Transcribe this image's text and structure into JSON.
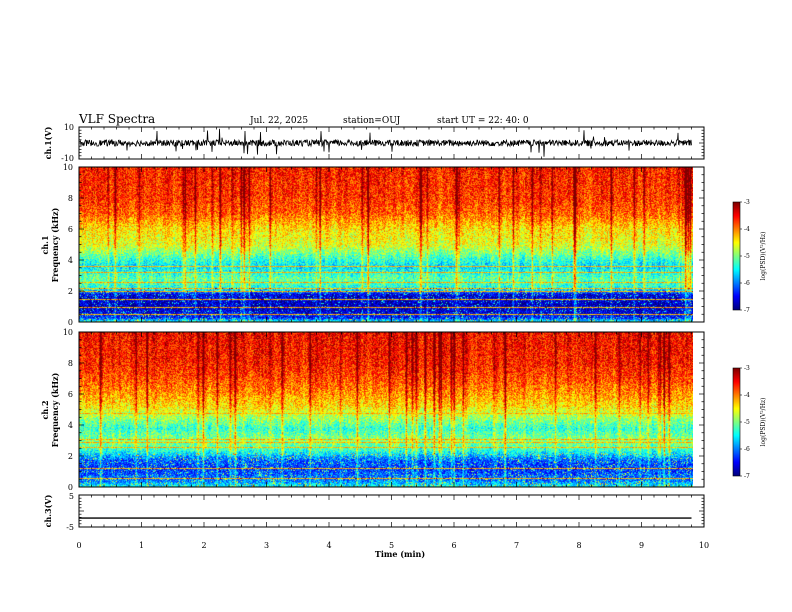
{
  "header": {
    "title": "VLF Spectra",
    "date": "Jul. 22, 2025",
    "station": "station=OUJ",
    "start_time": "start UT =  22: 40: 0"
  },
  "chart_data": [
    {
      "id": "ch1_waveform",
      "type": "line",
      "ylabel": "ch.1(V)",
      "ylim": [
        -10,
        10
      ],
      "yticks": [
        "10",
        "-10"
      ],
      "xlim": [
        0,
        10
      ],
      "baseline": 0,
      "noise_amplitude": 2,
      "spike_amplitude": 8,
      "data_end_min": 9.8
    },
    {
      "id": "ch1_spectrogram",
      "type": "heatmap",
      "ylabel_channel": "ch.1",
      "ylabel": "Frequency (kHz)",
      "ylim": [
        0,
        10
      ],
      "yticks": [
        "0",
        "2",
        "4",
        "6",
        "8",
        "10"
      ],
      "xlim": [
        0,
        10
      ],
      "data_end_min": 9.8,
      "colorbar": {
        "label": "log(PSD)(V²/Hz)",
        "range": [
          -7,
          -3
        ],
        "ticks": [
          "-3",
          "-4",
          "-5",
          "-6",
          "-7"
        ]
      },
      "profile_log_psd": [
        {
          "f": 0.0,
          "v": -5.2
        },
        {
          "f": 0.3,
          "v": -6.4
        },
        {
          "f": 1.0,
          "v": -6.8
        },
        {
          "f": 1.8,
          "v": -6.6
        },
        {
          "f": 2.2,
          "v": -5.4
        },
        {
          "f": 2.8,
          "v": -5.1
        },
        {
          "f": 3.6,
          "v": -5.6
        },
        {
          "f": 4.2,
          "v": -5.2
        },
        {
          "f": 5.0,
          "v": -4.6
        },
        {
          "f": 6.0,
          "v": -4.4
        },
        {
          "f": 7.0,
          "v": -3.9
        },
        {
          "f": 8.0,
          "v": -3.7
        },
        {
          "f": 10.0,
          "v": -3.6
        }
      ],
      "lines_khz": [
        0.5,
        1.0,
        1.5,
        2.0,
        2.2,
        2.6,
        3.2,
        3.6
      ]
    },
    {
      "id": "ch2_spectrogram",
      "type": "heatmap",
      "ylabel_channel": "ch.2",
      "ylabel": "Frequency (kHz)",
      "ylim": [
        0,
        10
      ],
      "yticks": [
        "0",
        "2",
        "4",
        "6",
        "8",
        "10"
      ],
      "xlim": [
        0,
        10
      ],
      "data_end_min": 9.8,
      "colorbar": {
        "label": "log(PSD)(V²/Hz)",
        "range": [
          -7,
          -3
        ],
        "ticks": [
          "-3",
          "-4",
          "-5",
          "-6",
          "-7"
        ]
      },
      "profile_log_psd": [
        {
          "f": 0.0,
          "v": -5.4
        },
        {
          "f": 0.4,
          "v": -6.0
        },
        {
          "f": 1.2,
          "v": -6.3
        },
        {
          "f": 1.8,
          "v": -6.1
        },
        {
          "f": 2.4,
          "v": -5.3
        },
        {
          "f": 3.0,
          "v": -4.9
        },
        {
          "f": 3.8,
          "v": -5.3
        },
        {
          "f": 4.6,
          "v": -4.8
        },
        {
          "f": 5.2,
          "v": -4.4
        },
        {
          "f": 6.0,
          "v": -4.1
        },
        {
          "f": 7.0,
          "v": -3.8
        },
        {
          "f": 8.0,
          "v": -3.6
        },
        {
          "f": 10.0,
          "v": -3.5
        }
      ],
      "lines_khz": [
        0.6,
        1.2,
        2.6,
        2.9,
        3.1,
        4.8
      ]
    },
    {
      "id": "ch3_waveform",
      "type": "line",
      "ylabel": "ch.3(V)",
      "ylim": [
        -5,
        5
      ],
      "yticks": [
        "5",
        "-5"
      ],
      "xlim": [
        0,
        10
      ],
      "baseline": -2.2,
      "noise_amplitude": 0,
      "spike_amplitude": 0,
      "data_end_min": 9.8,
      "xlabel": "Time (min)",
      "xticks": [
        "0",
        "1",
        "2",
        "3",
        "4",
        "5",
        "6",
        "7",
        "8",
        "9",
        "10"
      ]
    }
  ]
}
